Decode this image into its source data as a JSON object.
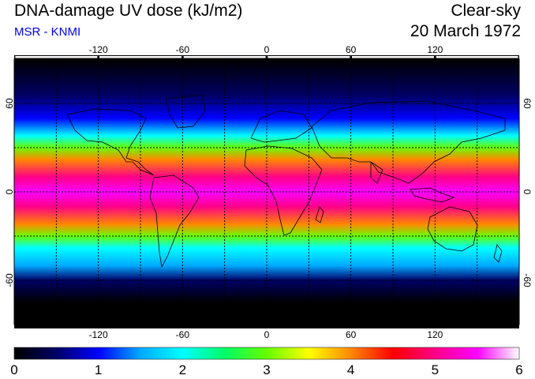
{
  "header": {
    "title": "DNA-damage UV dose (kJ/m2)",
    "subtitle": "MSR - KNMI",
    "condition": "Clear-sky",
    "date": "20 March 1972"
  },
  "colors": {
    "subtitle": "#0000ee",
    "coastline": "#000000",
    "grid": "#000000",
    "scale_stops": [
      "#000000",
      "#000066",
      "#0000ff",
      "#00aaff",
      "#00ffff",
      "#00ff66",
      "#66ff00",
      "#ffff00",
      "#ff8800",
      "#ff0000",
      "#ff0088",
      "#ff00ff",
      "#ffffff"
    ]
  },
  "map": {
    "projection": "equirectangular",
    "lon_range": [
      -180,
      180
    ],
    "lat_range": [
      -90,
      90
    ],
    "grid_lon_step": 30,
    "grid_lat_step": 30,
    "lon_tick_labels": [
      "-120",
      "-60",
      "0",
      "60",
      "120"
    ],
    "lat_tick_labels": [
      "60",
      "0",
      "-60"
    ]
  },
  "colorbar": {
    "min": 0,
    "max": 6,
    "tick_labels": [
      "0",
      "1",
      "2",
      "3",
      "4",
      "5",
      "6"
    ]
  }
}
